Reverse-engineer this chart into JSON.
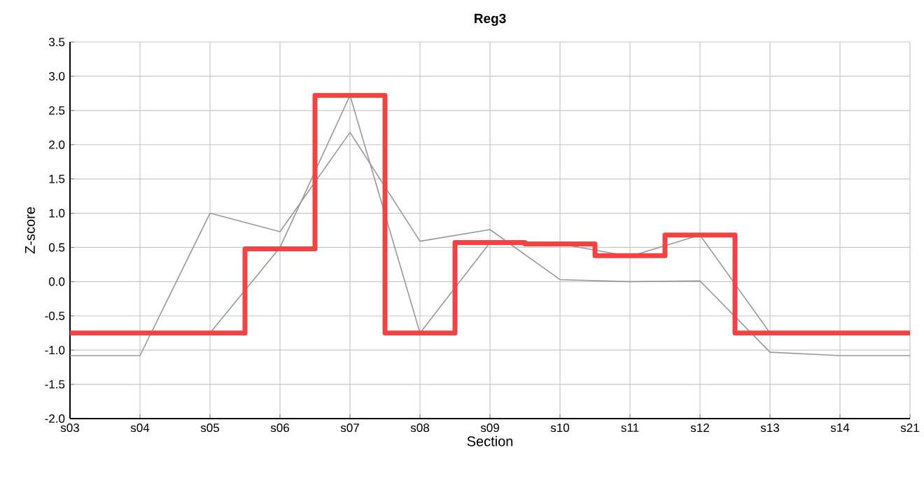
{
  "chart_data": {
    "type": "line",
    "title": "Reg3",
    "xlabel": "Section",
    "ylabel": "Z-score",
    "categories": [
      "s03",
      "s04",
      "s05",
      "s06",
      "s07",
      "s08",
      "s09",
      "s10",
      "s11",
      "s12",
      "s13",
      "s14",
      "s21"
    ],
    "series": [
      {
        "color": "#999999",
        "values": [
          -1.08,
          -1.08,
          1.0,
          0.73,
          2.18,
          0.59,
          0.76,
          0.03,
          0.0,
          0.01,
          -1.03,
          -1.08,
          -1.08
        ]
      },
      {
        "color": "#999999",
        "values": [
          null,
          null,
          -0.75,
          0.5,
          2.72,
          -0.75,
          0.57,
          0.55,
          0.37,
          0.68,
          -0.75,
          null,
          null
        ]
      },
      {
        "type": "step",
        "color": "#f44242",
        "values": [
          -0.75,
          -0.75,
          -0.75,
          0.48,
          2.72,
          -0.75,
          0.57,
          0.55,
          0.38,
          0.68,
          -0.75,
          -0.75,
          -0.75
        ]
      }
    ],
    "ylim": [
      -2.0,
      3.5
    ],
    "yticks": [
      {
        "value": -2.0,
        "label": "-2.0"
      },
      {
        "value": -1.5,
        "label": "-1.5"
      },
      {
        "value": -1.0,
        "label": "-1.0"
      },
      {
        "value": -0.5,
        "label": "-0.5"
      },
      {
        "value": 0.0,
        "label": "0.0"
      },
      {
        "value": 0.5,
        "label": "0.5"
      },
      {
        "value": 1.0,
        "label": "1.0"
      },
      {
        "value": 1.5,
        "label": "1.5"
      },
      {
        "value": 2.0,
        "label": "2.0"
      },
      {
        "value": 2.5,
        "label": "2.5"
      },
      {
        "value": 3.0,
        "label": "3.0"
      },
      {
        "value": 3.5,
        "label": "3.5"
      }
    ],
    "grid": true,
    "marker": "none",
    "line_style": "solid"
  }
}
